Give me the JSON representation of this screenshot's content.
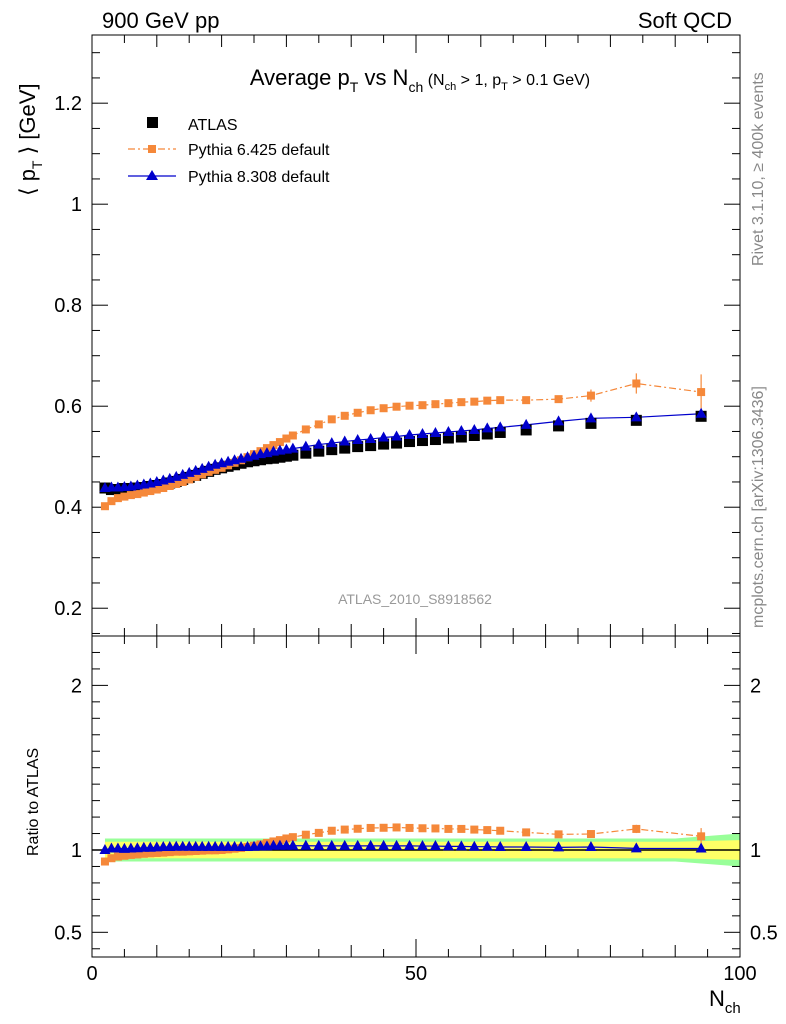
{
  "header": {
    "left": "900 GeV pp",
    "right": "Soft QCD"
  },
  "side_text": {
    "rivet": "Rivet 3.1.10, ≥ 400k events",
    "mcplots": "mcplots.cern.ch [arXiv:1306.3436]"
  },
  "colors": {
    "atlas": "#000000",
    "pythia6": "#f5883a",
    "pythia8": "#0000cc",
    "band_inner": "#ffff66",
    "band_outer": "#99ff99"
  },
  "chart_data": [
    {
      "type": "scatter",
      "title": "Average p_T vs N_ch (N_ch > 1, p_T > 0.1 GeV)",
      "title_parts": {
        "main": "Average p",
        "sub1": "T",
        "mid": " vs N",
        "sub2": "ch",
        "cut_a": " (N",
        "cut_sub1": "ch",
        "cut_b": " > 1, p",
        "cut_sub2": "T",
        "cut_c": " > 0.1 GeV)"
      },
      "ylabel": "⟨ p_T ⟩ [GeV]",
      "ylabel_parts": {
        "open": "⟨ p",
        "sub": "T",
        "close": " ⟩ [GeV]"
      },
      "analysis_tag": "ATLAS_2010_S8918562",
      "xlim": [
        0,
        100
      ],
      "ylim": [
        0.145,
        1.335
      ],
      "yticks": [
        "0.2",
        "0.4",
        "0.6",
        "0.8",
        "1",
        "1.2"
      ],
      "legend_position": "top-left",
      "series": [
        {
          "name": "ATLAS",
          "marker": "square",
          "line": "none",
          "x": [
            2,
            3,
            4,
            5,
            6,
            7,
            8,
            9,
            10,
            11,
            12,
            13,
            14,
            15,
            16,
            17,
            18,
            19,
            20,
            21,
            22,
            23,
            24,
            25,
            26,
            27,
            28,
            29,
            30,
            31,
            33,
            35,
            37,
            39,
            41,
            43,
            45,
            47,
            49,
            51,
            53,
            55,
            57,
            59,
            61,
            63,
            67,
            72,
            77,
            84,
            94
          ],
          "y": [
            0.438,
            0.435,
            0.435,
            0.437,
            0.437,
            0.438,
            0.439,
            0.441,
            0.443,
            0.445,
            0.448,
            0.451,
            0.455,
            0.459,
            0.463,
            0.467,
            0.471,
            0.475,
            0.478,
            0.481,
            0.484,
            0.487,
            0.49,
            0.492,
            0.494,
            0.496,
            0.497,
            0.499,
            0.501,
            0.503,
            0.507,
            0.511,
            0.514,
            0.517,
            0.52,
            0.522,
            0.525,
            0.527,
            0.53,
            0.532,
            0.534,
            0.537,
            0.539,
            0.542,
            0.545,
            0.548,
            0.553,
            0.561,
            0.566,
            0.572,
            0.58
          ]
        },
        {
          "name": "Pythia 6.425 default",
          "marker": "square",
          "line": "dashdot",
          "x": [
            2,
            3,
            4,
            5,
            6,
            7,
            8,
            9,
            10,
            11,
            12,
            13,
            14,
            15,
            16,
            17,
            18,
            19,
            20,
            21,
            22,
            23,
            24,
            25,
            26,
            27,
            28,
            29,
            30,
            31,
            33,
            35,
            37,
            39,
            41,
            43,
            45,
            47,
            49,
            51,
            53,
            55,
            57,
            59,
            61,
            63,
            67,
            72,
            77,
            84,
            94
          ],
          "y": [
            0.402,
            0.412,
            0.418,
            0.421,
            0.424,
            0.426,
            0.429,
            0.432,
            0.435,
            0.438,
            0.442,
            0.446,
            0.45,
            0.455,
            0.46,
            0.465,
            0.47,
            0.474,
            0.478,
            0.483,
            0.488,
            0.493,
            0.499,
            0.505,
            0.511,
            0.517,
            0.523,
            0.529,
            0.536,
            0.542,
            0.554,
            0.564,
            0.574,
            0.581,
            0.587,
            0.592,
            0.596,
            0.599,
            0.601,
            0.602,
            0.604,
            0.606,
            0.608,
            0.609,
            0.611,
            0.612,
            0.612,
            0.614,
            0.621,
            0.645,
            0.628
          ]
        },
        {
          "name": "Pythia 8.308 default",
          "marker": "triangle",
          "line": "solid",
          "x": [
            2,
            3,
            4,
            5,
            6,
            7,
            8,
            9,
            10,
            11,
            12,
            13,
            14,
            15,
            16,
            17,
            18,
            19,
            20,
            21,
            22,
            23,
            24,
            25,
            26,
            27,
            28,
            29,
            30,
            31,
            33,
            35,
            37,
            39,
            41,
            43,
            45,
            47,
            49,
            51,
            53,
            55,
            57,
            59,
            61,
            63,
            67,
            72,
            77,
            84,
            94
          ],
          "y": [
            0.438,
            0.439,
            0.439,
            0.44,
            0.441,
            0.443,
            0.445,
            0.447,
            0.45,
            0.453,
            0.456,
            0.46,
            0.464,
            0.468,
            0.472,
            0.476,
            0.48,
            0.484,
            0.487,
            0.49,
            0.493,
            0.496,
            0.499,
            0.502,
            0.505,
            0.507,
            0.51,
            0.512,
            0.514,
            0.516,
            0.52,
            0.524,
            0.527,
            0.53,
            0.533,
            0.535,
            0.538,
            0.54,
            0.543,
            0.545,
            0.547,
            0.549,
            0.551,
            0.553,
            0.556,
            0.558,
            0.563,
            0.57,
            0.576,
            0.578,
            0.585
          ]
        }
      ]
    },
    {
      "type": "scatter",
      "ylabel": "Ratio to ATLAS",
      "xlabel": "N_ch",
      "xlabel_parts": {
        "main": "N",
        "sub": "ch"
      },
      "xlim": [
        0,
        100
      ],
      "xticks": [
        "0",
        "50",
        "100"
      ],
      "ylim": [
        0.35,
        2.3
      ],
      "yticks": [
        "0.5",
        "1",
        "2"
      ],
      "reference_line": 1,
      "band": {
        "x": [
          2,
          90,
          100
        ],
        "inner": [
          0.05,
          0.05,
          0.06
        ],
        "outer": [
          0.07,
          0.07,
          0.1
        ]
      },
      "series": [
        {
          "name": "Pythia 6.425 default",
          "marker": "square",
          "line": "dashdot",
          "x": [
            2,
            3,
            4,
            5,
            6,
            7,
            8,
            9,
            10,
            11,
            12,
            13,
            14,
            15,
            16,
            17,
            18,
            19,
            20,
            21,
            22,
            23,
            24,
            25,
            26,
            27,
            28,
            29,
            30,
            31,
            33,
            35,
            37,
            39,
            41,
            43,
            45,
            47,
            49,
            51,
            53,
            55,
            57,
            59,
            61,
            63,
            67,
            72,
            77,
            84,
            94
          ],
          "y": [
            0.93,
            0.95,
            0.96,
            0.965,
            0.97,
            0.973,
            0.977,
            0.98,
            0.982,
            0.984,
            0.987,
            0.99,
            0.99,
            0.992,
            0.994,
            0.996,
            0.998,
            0.998,
            1,
            1.004,
            1.008,
            1.012,
            1.018,
            1.026,
            1.034,
            1.043,
            1.052,
            1.06,
            1.07,
            1.078,
            1.093,
            1.104,
            1.117,
            1.124,
            1.129,
            1.134,
            1.135,
            1.137,
            1.134,
            1.132,
            1.131,
            1.128,
            1.128,
            1.124,
            1.121,
            1.117,
            1.107,
            1.095,
            1.097,
            1.128,
            1.083
          ]
        },
        {
          "name": "Pythia 8.308 default",
          "marker": "triangle",
          "line": "solid",
          "x": [
            2,
            3,
            4,
            5,
            6,
            7,
            8,
            9,
            10,
            11,
            12,
            13,
            14,
            15,
            16,
            17,
            18,
            19,
            20,
            21,
            22,
            23,
            24,
            25,
            26,
            27,
            28,
            29,
            30,
            31,
            33,
            35,
            37,
            39,
            41,
            43,
            45,
            47,
            49,
            51,
            53,
            55,
            57,
            59,
            61,
            63,
            67,
            72,
            77,
            84,
            94
          ],
          "y": [
            1,
            1.009,
            1.009,
            1.007,
            1.009,
            1.011,
            1.014,
            1.014,
            1.016,
            1.018,
            1.018,
            1.02,
            1.02,
            1.02,
            1.019,
            1.019,
            1.019,
            1.019,
            1.019,
            1.019,
            1.019,
            1.018,
            1.018,
            1.02,
            1.022,
            1.022,
            1.026,
            1.026,
            1.026,
            1.026,
            1.026,
            1.025,
            1.025,
            1.025,
            1.025,
            1.025,
            1.025,
            1.025,
            1.025,
            1.024,
            1.024,
            1.022,
            1.022,
            1.02,
            1.02,
            1.018,
            1.018,
            1.016,
            1.018,
            1.01,
            1.009
          ]
        }
      ]
    }
  ]
}
